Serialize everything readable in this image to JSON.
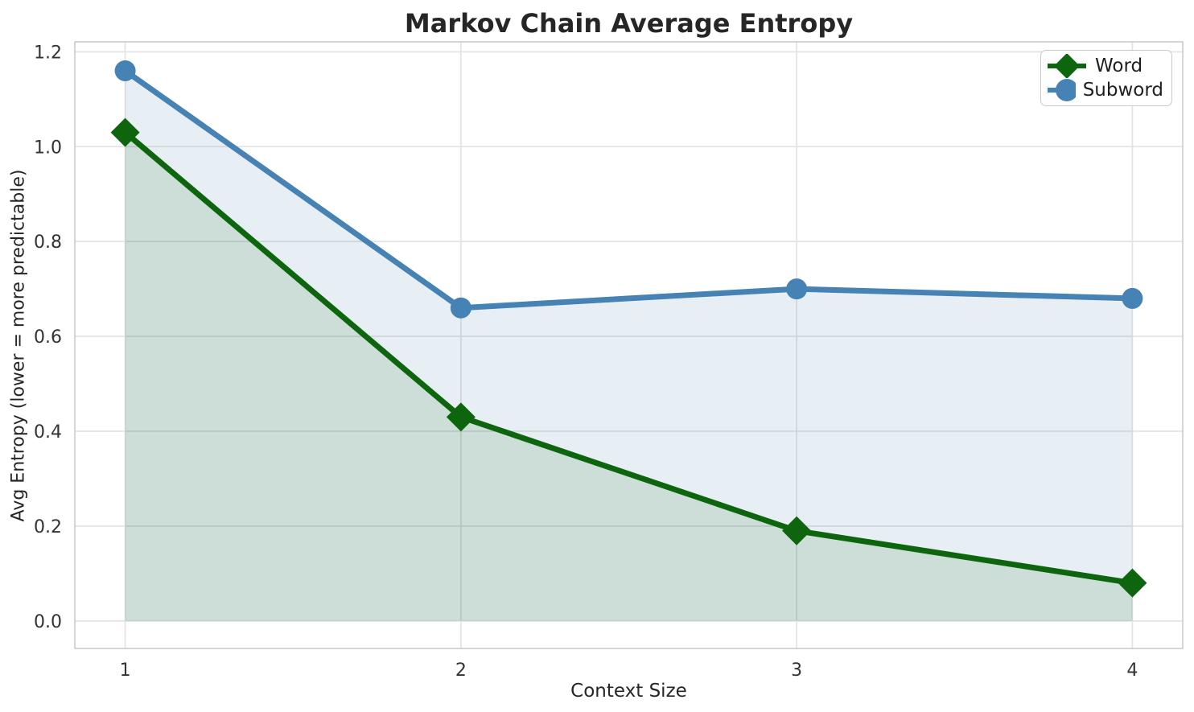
{
  "figure": {
    "title": "Markov Chain Average Entropy",
    "xlabel": "Context Size",
    "ylabel": "Avg Entropy (lower = more predictable)"
  },
  "legend": {
    "position": "upper right",
    "items": [
      {
        "label": "Word",
        "marker": "diamond",
        "color": "#0d660d"
      },
      {
        "label": "Subword",
        "marker": "circle",
        "color": "#4682b4"
      }
    ]
  },
  "chart_data": {
    "type": "line",
    "title": "Markov Chain Average Entropy",
    "xlabel": "Context Size",
    "ylabel": "Avg Entropy (lower = more predictable)",
    "x": [
      1,
      2,
      3,
      4
    ],
    "series": [
      {
        "name": "Word",
        "values": [
          1.03,
          0.43,
          0.19,
          0.08
        ],
        "color": "#0d660d",
        "marker": "diamond",
        "fill_alpha": 0.12
      },
      {
        "name": "Subword",
        "values": [
          1.16,
          0.66,
          0.7,
          0.68
        ],
        "color": "#4682b4",
        "marker": "circle",
        "fill_alpha": 0.13
      }
    ],
    "area_fill": true,
    "fill_baseline": 0,
    "xticks": [
      1,
      2,
      3,
      4
    ],
    "xtick_labels": [
      "1",
      "2",
      "3",
      "4"
    ],
    "yticks": [
      0.0,
      0.2,
      0.4,
      0.6,
      0.8,
      1.0,
      1.2
    ],
    "ytick_labels": [
      "0.0",
      "0.2",
      "0.4",
      "0.6",
      "0.8",
      "1.0",
      "1.2"
    ],
    "xlim": [
      0.85,
      4.15
    ],
    "ylim": [
      -0.058,
      1.221
    ],
    "grid": true,
    "grid_color": "#e4e4e4",
    "spine_color": "#cbcbcb",
    "legend_position": "upper right"
  }
}
